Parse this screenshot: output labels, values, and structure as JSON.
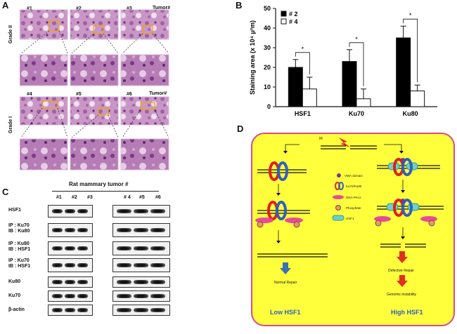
{
  "panel_a": {
    "letter": "A",
    "grade_ii_label": "Grade II",
    "grade_i_label": "Grade I",
    "tumor_header": "Tumor#",
    "tumors_top": [
      "#1",
      "#2",
      "#3"
    ],
    "tumors_bottom": [
      "#4",
      "#5",
      "#6"
    ]
  },
  "panel_b": {
    "letter": "B",
    "chart_data": {
      "type": "bar",
      "categories": [
        "HSF1",
        "Ku70",
        "Ku80"
      ],
      "series": [
        {
          "name": "# 2",
          "values": [
            20,
            23,
            35
          ],
          "errors": [
            4,
            6,
            6
          ],
          "color": "#000000"
        },
        {
          "name": "# 4",
          "values": [
            9,
            4,
            8
          ],
          "errors": [
            6,
            5,
            3
          ],
          "color": "#ffffff"
        }
      ],
      "ylabel": "Staining area (x 10⁴ μ²m)",
      "ylim": [
        0,
        50
      ],
      "yticks": [
        0,
        10,
        20,
        30,
        40,
        50
      ],
      "significance": [
        "*",
        "*",
        "*"
      ],
      "legend_position": "top-left"
    }
  },
  "panel_c": {
    "letter": "C",
    "header": "Rat mammary tumor #",
    "lanes": [
      "#1",
      "#2",
      "#3",
      "# 4",
      "#5",
      "#6"
    ],
    "rows": [
      {
        "label": "HSF1"
      },
      {
        "label": "IP : Ku70\nIB : Ku80"
      },
      {
        "label": "IP : Ku80\nIB : HSF1"
      },
      {
        "label": "IP : Ku70\nIB : HSF1"
      },
      {
        "label": "Ku80"
      },
      {
        "label": "Ku70"
      },
      {
        "label": "β-actin"
      }
    ]
  },
  "panel_d": {
    "letter": "D",
    "ir_label": "IR",
    "legend": [
      "VWA domain",
      "Ku70/Ku80",
      "DNA-PKcs",
      "Phosphate",
      "HSF1"
    ],
    "left_outcome": "Normal Repair",
    "right_outcome_1": "Defective Repair",
    "right_outcome_2": "Genomic instability",
    "left_title": "Low HSF1",
    "right_title": "High HSF1",
    "colors": {
      "background": "#ffff3c",
      "border": "#d94a8a",
      "ku70": "#e02020",
      "ku80": "#3060c0",
      "dnapk": "#e84a9a",
      "phosphate": "#e6a23c",
      "hsf1": "#6fd0c8",
      "arrow_blue": "#3a6fb0",
      "arrow_red": "#e03020"
    }
  }
}
